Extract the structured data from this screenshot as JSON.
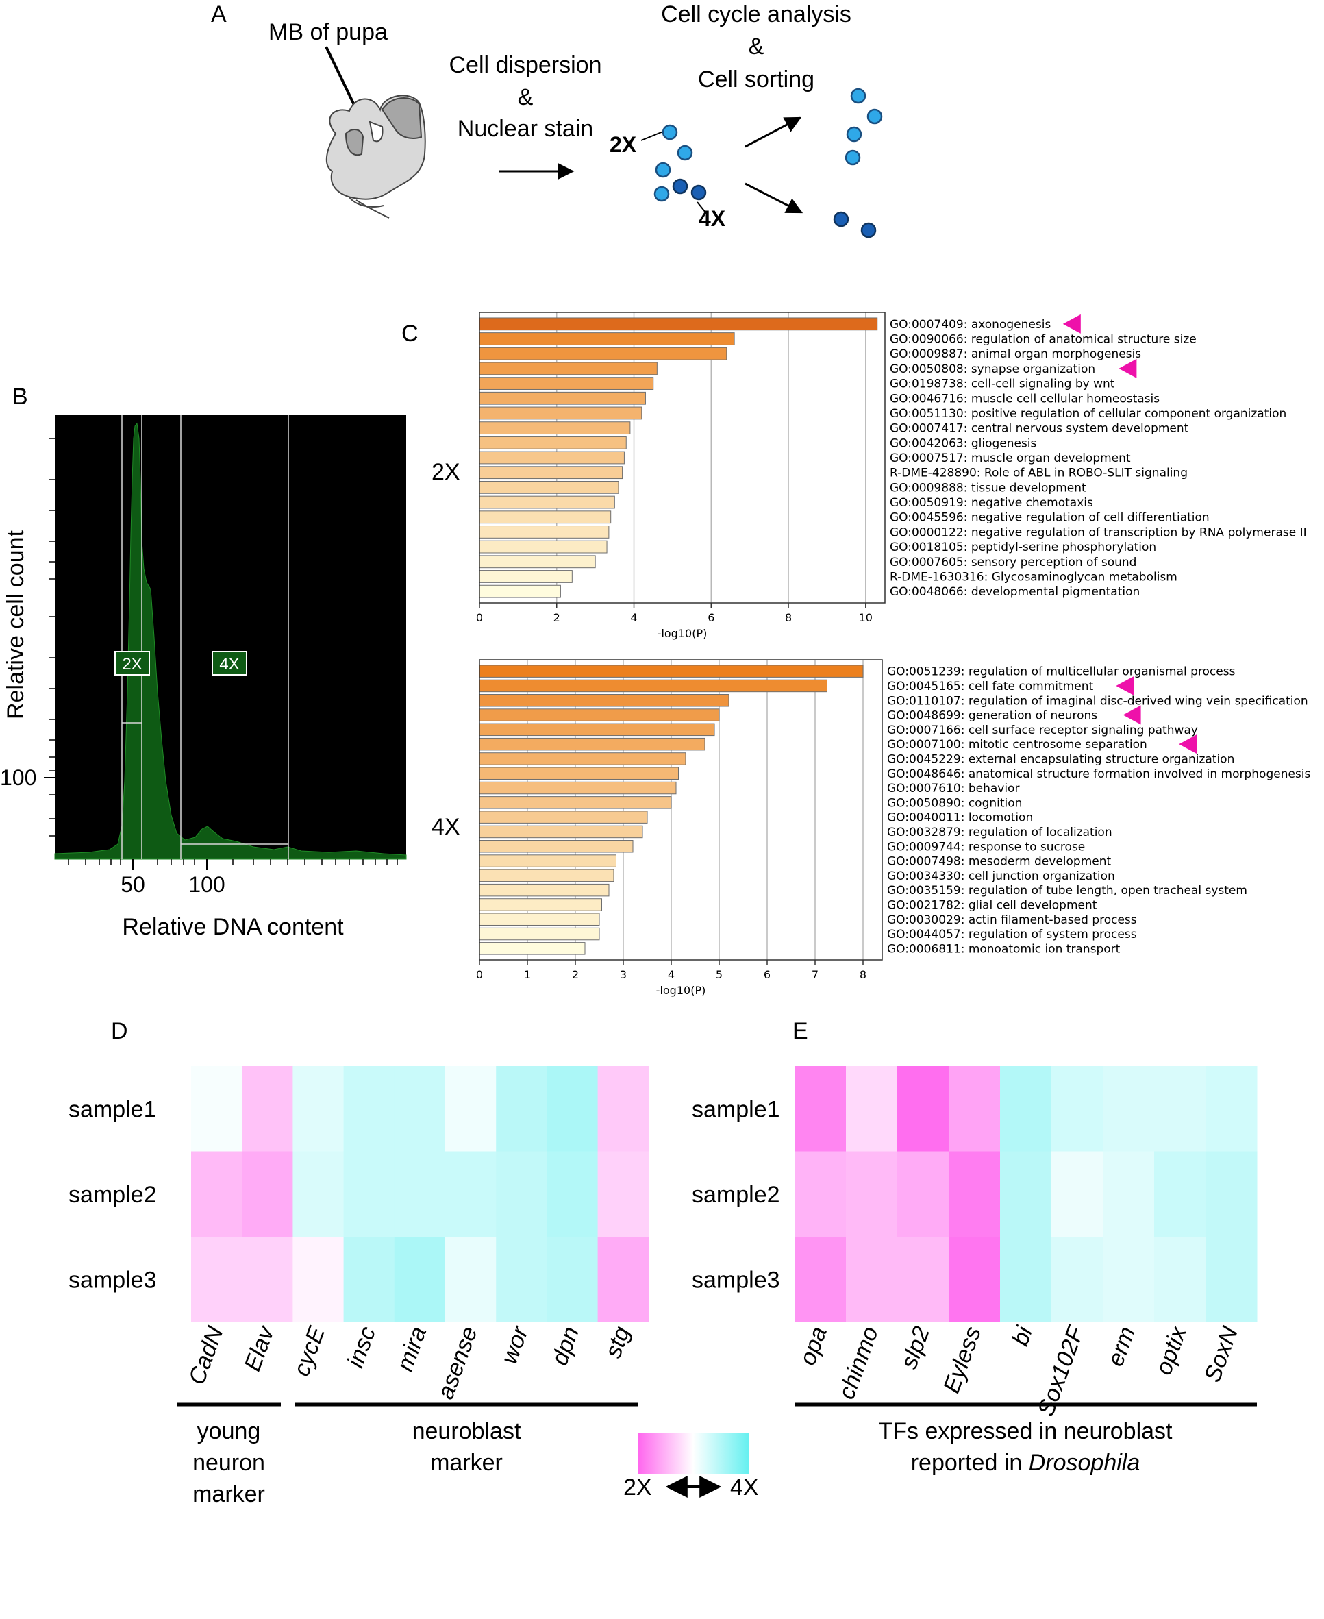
{
  "panels": {
    "a": "A",
    "b": "B",
    "c": "C",
    "d": "D",
    "e": "E"
  },
  "panel_a": {
    "mb_label": "MB of pupa",
    "step1_line1": "Cell dispersion",
    "step1_amp": "&",
    "step1_line2": "Nuclear stain",
    "step2_line1": "Cell cycle analysis",
    "step2_amp": "&",
    "step2_line2": "Cell sorting",
    "label_2x": "2X",
    "label_4x": "4X",
    "colors": {
      "cell_2x": "#2fa8e8",
      "cell_4x": "#1a5fb4",
      "brain_fill": "#d9d9d9",
      "brain_dark": "#a6a6a6"
    }
  },
  "chart_data": [
    {
      "type": "histogram",
      "panel": "B",
      "title": "",
      "xlabel": "Relative DNA content",
      "ylabel": "Relative cell count",
      "x_tick_labels": [
        "50",
        "100"
      ],
      "y_tick_labels": [
        "100"
      ],
      "gates": [
        {
          "label": "2X"
        },
        {
          "label": "4X"
        }
      ],
      "peaks": [
        {
          "x": 50,
          "relative_height": 1.0
        },
        {
          "x": 100,
          "relative_height": 0.08
        }
      ],
      "colors": {
        "background": "#000000",
        "fill": "#0e5a14",
        "gate": "#d8d8d8"
      }
    },
    {
      "type": "bar",
      "orientation": "horizontal",
      "panel": "C",
      "group_label": "2X",
      "xlabel": "-log10(P)",
      "xlim": [
        0,
        10.5
      ],
      "xticks": [
        0,
        2,
        4,
        6,
        8,
        10
      ],
      "categories": [
        "GO:0007409: axonogenesis",
        "GO:0090066: regulation of anatomical structure size",
        "GO:0009887: animal organ morphogenesis",
        "GO:0050808: synapse organization",
        "GO:0198738: cell-cell signaling by wnt",
        "GO:0046716: muscle cell cellular homeostasis",
        "GO:0051130: positive regulation of cellular component organization",
        "GO:0007417: central nervous system development",
        "GO:0042063: gliogenesis",
        "GO:0007517: muscle organ development",
        "R-DME-428890: Role of ABL in ROBO-SLIT signaling",
        "GO:0009888: tissue development",
        "GO:0050919: negative chemotaxis",
        "GO:0045596: negative regulation of cell differentiation",
        "GO:0000122: negative regulation of transcription by RNA polymerase II",
        "GO:0018105: peptidyl-serine phosphorylation",
        "GO:0007605: sensory perception of sound",
        "R-DME-1630316: Glycosaminoglycan metabolism",
        "GO:0048066: developmental pigmentation"
      ],
      "values": [
        10.3,
        6.6,
        6.4,
        4.6,
        4.5,
        4.3,
        4.2,
        3.9,
        3.8,
        3.75,
        3.7,
        3.6,
        3.5,
        3.4,
        3.35,
        3.3,
        3.0,
        2.4,
        2.1
      ],
      "highlighted": [
        0,
        3
      ]
    },
    {
      "type": "bar",
      "orientation": "horizontal",
      "panel": "C",
      "group_label": "4X",
      "xlabel": "-log10(P)",
      "xlim": [
        0,
        8.4
      ],
      "xticks": [
        0,
        1,
        2,
        3,
        4,
        5,
        6,
        7,
        8
      ],
      "categories": [
        "GO:0051239: regulation of multicellular organismal process",
        "GO:0045165: cell fate commitment",
        "GO:0110107: regulation of imaginal disc-derived wing vein specification",
        "GO:0048699: generation of neurons",
        "GO:0007166: cell surface receptor signaling pathway",
        "GO:0007100: mitotic centrosome separation",
        "GO:0045229: external encapsulating structure organization",
        "GO:0048646: anatomical structure formation involved in morphogenesis",
        "GO:0007610: behavior",
        "GO:0050890: cognition",
        "GO:0040011: locomotion",
        "GO:0032879: regulation of localization",
        "GO:0009744: response to sucrose",
        "GO:0007498: mesoderm development",
        "GO:0034330: cell junction organization",
        "GO:0035159: regulation of tube length, open tracheal system",
        "GO:0021782: glial cell development",
        "GO:0030029: actin filament-based process",
        "GO:0044057: regulation of system process",
        "GO:0006811: monoatomic ion transport"
      ],
      "values": [
        8.0,
        7.25,
        5.2,
        5.0,
        4.9,
        4.7,
        4.3,
        4.15,
        4.1,
        4.0,
        3.5,
        3.4,
        3.2,
        2.85,
        2.8,
        2.7,
        2.55,
        2.5,
        2.5,
        2.2
      ],
      "highlighted": [
        1,
        3,
        5
      ]
    },
    {
      "type": "heatmap",
      "panel": "D",
      "rows": [
        "sample1",
        "sample2",
        "sample3"
      ],
      "columns": [
        "CadN",
        "Elav",
        "cycE",
        "insc",
        "mira",
        "asense",
        "wor",
        "dpn",
        "stg"
      ],
      "values": [
        [
          0.05,
          -0.4,
          0.2,
          0.35,
          0.35,
          0.1,
          0.45,
          0.55,
          -0.35
        ],
        [
          -0.45,
          -0.55,
          0.25,
          0.35,
          0.35,
          0.35,
          0.4,
          0.5,
          -0.3
        ],
        [
          -0.3,
          -0.3,
          -0.08,
          0.45,
          0.55,
          0.15,
          0.4,
          0.45,
          -0.55
        ]
      ],
      "column_groups": [
        {
          "label_lines": [
            "young",
            "neuron",
            "marker"
          ]
        },
        {
          "label_lines": [
            "neuroblast",
            "marker"
          ]
        }
      ]
    },
    {
      "type": "heatmap",
      "panel": "E",
      "rows": [
        "sample1",
        "sample2",
        "sample3"
      ],
      "columns": [
        "opa",
        "chinmo",
        "slp2",
        "Eyless",
        "bi",
        "Sox102F",
        "erm",
        "optix",
        "SoxN"
      ],
      "values": [
        [
          -0.8,
          -0.25,
          -0.95,
          -0.6,
          0.5,
          0.3,
          0.25,
          0.25,
          0.3
        ],
        [
          -0.5,
          -0.45,
          -0.55,
          -0.85,
          0.45,
          0.12,
          0.2,
          0.35,
          0.4
        ],
        [
          -0.7,
          -0.45,
          -0.45,
          -0.9,
          0.45,
          0.25,
          0.2,
          0.25,
          0.4
        ]
      ],
      "column_group_line1": "TFs expressed in neuroblast",
      "column_group_line2_prefix": "reported in ",
      "column_group_line2_italic": "Drosophila"
    }
  ],
  "legend": {
    "low_label": "2X",
    "high_label": "4X",
    "colors": {
      "low": "#ff66ee",
      "mid": "#ffffff",
      "high": "#66f0f0"
    }
  },
  "highlight_color": "#ee11aa"
}
